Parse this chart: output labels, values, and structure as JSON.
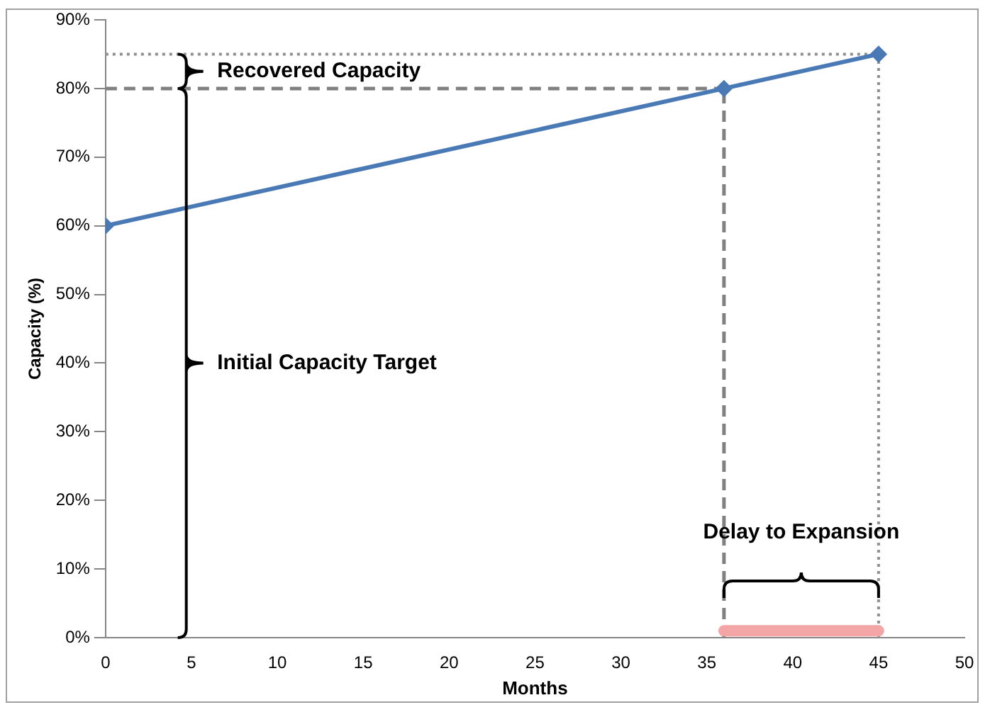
{
  "chart_data": {
    "type": "line",
    "xlabel": "Months",
    "ylabel": "Capacity (%)",
    "series": [
      {
        "color": "#4a7ab5",
        "x": [
          0,
          36,
          45
        ],
        "values": [
          60,
          80,
          85
        ]
      },
      {
        "type": "line",
        "color": "#f4a6a6",
        "x": [
          36,
          45
        ],
        "values": [
          1,
          1
        ],
        "marker": "none"
      }
    ],
    "xlim": [
      0,
      50
    ],
    "xticks": [
      0,
      5,
      10,
      15,
      20,
      25,
      30,
      35,
      40,
      45,
      50
    ],
    "ylim": [
      0,
      90
    ],
    "yticks": [
      {
        "value": 0,
        "label": "0%"
      },
      {
        "value": 10,
        "label": "10%"
      },
      {
        "value": 20,
        "label": "20%"
      },
      {
        "value": 30,
        "label": "30%"
      },
      {
        "value": 40,
        "label": "40%"
      },
      {
        "value": 50,
        "label": "50%"
      },
      {
        "value": 60,
        "label": "60%"
      },
      {
        "value": 70,
        "label": "70%"
      },
      {
        "value": 80,
        "label": "80%"
      },
      {
        "value": 90,
        "label": "90%"
      }
    ],
    "marker": "diamond",
    "line_style": "solid",
    "grid": false,
    "legend": false,
    "ref_lines": [
      {
        "axis": "y",
        "value": 80,
        "color": "#808080",
        "line_style": "dashed"
      },
      {
        "axis": "y",
        "value": 85,
        "color": "#909090",
        "line_style": "dotted"
      },
      {
        "axis": "x",
        "value": 36,
        "color": "#808080",
        "line_style": "dashed"
      },
      {
        "axis": "x",
        "value": 45,
        "color": "#909090",
        "line_style": "dotted"
      }
    ],
    "annotations": [
      "Recovered Capacity",
      "Initial Capacity Target",
      "Delay to Expansion"
    ]
  }
}
